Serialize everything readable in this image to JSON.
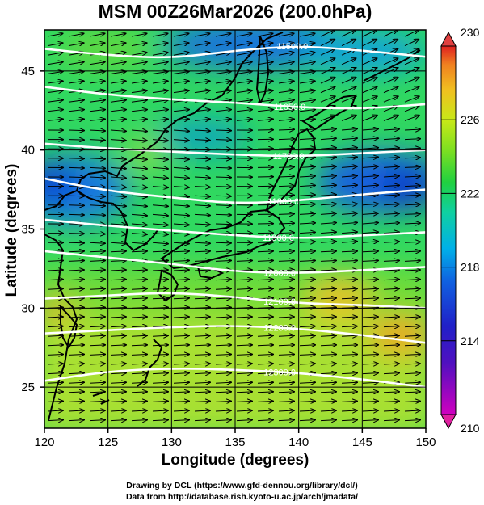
{
  "title": "MSM 00Z26Mar2026 (200.0hPa)",
  "x_axis": {
    "label": "Longitude (degrees)",
    "ticks": [
      120,
      125,
      130,
      135,
      140,
      145,
      150
    ],
    "range": [
      120,
      150
    ]
  },
  "y_axis": {
    "label": "Latitude  (degrees)",
    "ticks": [
      25,
      30,
      35,
      40,
      45
    ],
    "range": [
      22.4,
      47.6
    ]
  },
  "colorbar": {
    "ticks": [
      210,
      214,
      218,
      222,
      226,
      230
    ],
    "range": [
      210,
      230
    ],
    "colors": [
      "#d000c0",
      "#2020c8",
      "#00b0e8",
      "#20d040",
      "#c8e818",
      "#f08020",
      "#e02020"
    ]
  },
  "contours": [
    {
      "label": "11500.0",
      "label_lon": 139.5,
      "points": [
        [
          120,
          46.4
        ],
        [
          125,
          46.0
        ],
        [
          130,
          45.8
        ],
        [
          135,
          46.3
        ],
        [
          140,
          46.6
        ],
        [
          145,
          46.3
        ],
        [
          150,
          45.9
        ]
      ]
    },
    {
      "label": "11650.0",
      "label_lon": 139.3,
      "points": [
        [
          120,
          44.0
        ],
        [
          125,
          43.5
        ],
        [
          130,
          43.2
        ],
        [
          135,
          43.0
        ],
        [
          140,
          42.7
        ],
        [
          145,
          42.6
        ],
        [
          150,
          42.9
        ]
      ]
    },
    {
      "label": "11700.0",
      "label_lon": 139.2,
      "points": [
        [
          120,
          40.4
        ],
        [
          125,
          40.1
        ],
        [
          130,
          39.9
        ],
        [
          135,
          39.7
        ],
        [
          140,
          39.6
        ],
        [
          145,
          39.8
        ],
        [
          150,
          40.0
        ]
      ]
    },
    {
      "label": "11800.0",
      "label_lon": 138.8,
      "points": [
        [
          120,
          38.2
        ],
        [
          125,
          37.4
        ],
        [
          130,
          37.0
        ],
        [
          135,
          36.6
        ],
        [
          140,
          36.8
        ],
        [
          145,
          37.2
        ],
        [
          150,
          37.5
        ]
      ]
    },
    {
      "label": "11900.0",
      "label_lon": 138.4,
      "points": [
        [
          120,
          35.6
        ],
        [
          125,
          35.2
        ],
        [
          130,
          34.9
        ],
        [
          135,
          34.6
        ],
        [
          140,
          34.4
        ],
        [
          145,
          34.6
        ],
        [
          150,
          34.8
        ]
      ]
    },
    {
      "label": "12000.0",
      "label_lon": 138.5,
      "points": [
        [
          120,
          33.6
        ],
        [
          125,
          33.2
        ],
        [
          130,
          32.8
        ],
        [
          135,
          32.3
        ],
        [
          140,
          32.2
        ],
        [
          145,
          32.4
        ],
        [
          150,
          32.6
        ]
      ]
    },
    {
      "label": "12100.0",
      "label_lon": 138.5,
      "points": [
        [
          120,
          30.6
        ],
        [
          125,
          30.8
        ],
        [
          130,
          31.0
        ],
        [
          135,
          30.7
        ],
        [
          140,
          30.3
        ],
        [
          145,
          30.2
        ],
        [
          150,
          30.0
        ]
      ]
    },
    {
      "label": "12200.0",
      "label_lon": 138.5,
      "points": [
        [
          120,
          28.4
        ],
        [
          125,
          28.6
        ],
        [
          130,
          28.8
        ],
        [
          135,
          28.9
        ],
        [
          140,
          28.7
        ],
        [
          145,
          28.3
        ],
        [
          150,
          27.8
        ]
      ]
    },
    {
      "label": "12300.0",
      "label_lon": 138.5,
      "points": [
        [
          120,
          25.4
        ],
        [
          125,
          26.0
        ],
        [
          130,
          26.2
        ],
        [
          135,
          26.1
        ],
        [
          140,
          25.9
        ],
        [
          145,
          25.5
        ],
        [
          150,
          25.0
        ]
      ]
    }
  ],
  "credits": {
    "line1": "Drawing by DCL (https://www.gfd-dennou.org/library/dcl/)",
    "line2": "Data from http://database.rish.kyoto-u.ac.jp/arch/jmadata/"
  }
}
